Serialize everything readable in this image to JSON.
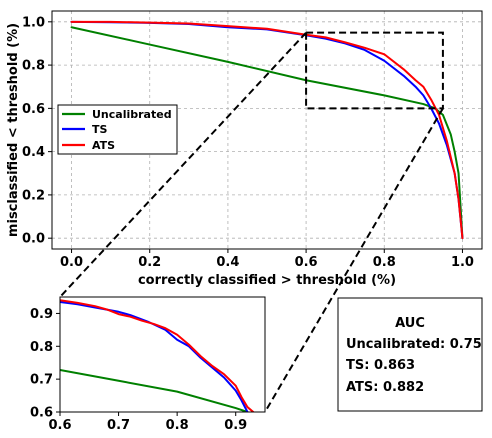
{
  "chart_data": [
    {
      "type": "line",
      "role": "main",
      "xlabel": "correctly classified > threshold (%)",
      "ylabel": "misclassified < threshold (%)",
      "xlim": [
        -0.05,
        1.05
      ],
      "ylim": [
        -0.05,
        1.05
      ],
      "xticks": [
        0.0,
        0.2,
        0.4,
        0.6,
        0.8,
        1.0
      ],
      "yticks": [
        0.0,
        0.2,
        0.4,
        0.6,
        0.8,
        1.0
      ],
      "xticklabels": [
        "0.0",
        "0.2",
        "0.4",
        "0.6",
        "0.8",
        "1.0"
      ],
      "yticklabels": [
        "0.0",
        "0.2",
        "0.4",
        "0.6",
        "0.8",
        "1.0"
      ],
      "grid": true,
      "legend_position": "center-left",
      "zoom_box": {
        "x": [
          0.6,
          0.95
        ],
        "y": [
          0.6,
          0.95
        ]
      },
      "series": [
        {
          "name": "Uncalibrated",
          "color": "#008000",
          "points": [
            [
              0.0,
              0.975
            ],
            [
              0.2,
              0.895
            ],
            [
              0.4,
              0.815
            ],
            [
              0.6,
              0.73
            ],
            [
              0.8,
              0.66
            ],
            [
              0.9,
              0.62
            ],
            [
              0.93,
              0.6
            ],
            [
              0.95,
              0.57
            ],
            [
              0.97,
              0.48
            ],
            [
              0.98,
              0.4
            ],
            [
              0.99,
              0.3
            ],
            [
              0.995,
              0.15
            ],
            [
              1.0,
              0.0
            ]
          ]
        },
        {
          "name": "TS",
          "color": "#0000ff",
          "points": [
            [
              0.0,
              1.0
            ],
            [
              0.1,
              0.998
            ],
            [
              0.2,
              0.995
            ],
            [
              0.3,
              0.99
            ],
            [
              0.4,
              0.975
            ],
            [
              0.5,
              0.965
            ],
            [
              0.6,
              0.938
            ],
            [
              0.65,
              0.922
            ],
            [
              0.7,
              0.9
            ],
            [
              0.75,
              0.87
            ],
            [
              0.8,
              0.82
            ],
            [
              0.85,
              0.75
            ],
            [
              0.88,
              0.7
            ],
            [
              0.9,
              0.66
            ],
            [
              0.92,
              0.6
            ],
            [
              0.94,
              0.53
            ],
            [
              0.96,
              0.43
            ],
            [
              0.98,
              0.3
            ],
            [
              0.99,
              0.18
            ],
            [
              1.0,
              0.0
            ]
          ]
        },
        {
          "name": "ATS",
          "color": "#ff0000",
          "points": [
            [
              0.0,
              1.0
            ],
            [
              0.1,
              1.0
            ],
            [
              0.2,
              0.996
            ],
            [
              0.3,
              0.992
            ],
            [
              0.4,
              0.98
            ],
            [
              0.5,
              0.968
            ],
            [
              0.6,
              0.94
            ],
            [
              0.65,
              0.928
            ],
            [
              0.7,
              0.905
            ],
            [
              0.75,
              0.88
            ],
            [
              0.8,
              0.85
            ],
            [
              0.85,
              0.78
            ],
            [
              0.88,
              0.73
            ],
            [
              0.9,
              0.7
            ],
            [
              0.92,
              0.64
            ],
            [
              0.94,
              0.57
            ],
            [
              0.96,
              0.45
            ],
            [
              0.98,
              0.3
            ],
            [
              0.99,
              0.18
            ],
            [
              1.0,
              0.0
            ]
          ]
        }
      ]
    },
    {
      "type": "line",
      "role": "zoom-inset",
      "xlim": [
        0.6,
        0.95
      ],
      "ylim": [
        0.6,
        0.95
      ],
      "xticks": [
        0.6,
        0.7,
        0.8,
        0.9
      ],
      "yticks": [
        0.6,
        0.7,
        0.8,
        0.9
      ],
      "xticklabels": [
        "0.6",
        "0.7",
        "0.8",
        "0.9"
      ],
      "yticklabels": [
        "0.6",
        "0.7",
        "0.8",
        "0.9"
      ],
      "grid": false,
      "series": [
        {
          "color": "#008000",
          "points": [
            [
              0.6,
              0.728
            ],
            [
              0.7,
              0.695
            ],
            [
              0.8,
              0.662
            ],
            [
              0.9,
              0.612
            ],
            [
              0.92,
              0.6
            ]
          ]
        },
        {
          "color": "#0000ff",
          "points": [
            [
              0.6,
              0.935
            ],
            [
              0.63,
              0.928
            ],
            [
              0.66,
              0.918
            ],
            [
              0.7,
              0.905
            ],
            [
              0.72,
              0.895
            ],
            [
              0.75,
              0.875
            ],
            [
              0.78,
              0.85
            ],
            [
              0.8,
              0.82
            ],
            [
              0.82,
              0.8
            ],
            [
              0.84,
              0.765
            ],
            [
              0.86,
              0.735
            ],
            [
              0.88,
              0.705
            ],
            [
              0.9,
              0.665
            ],
            [
              0.91,
              0.635
            ],
            [
              0.92,
              0.6
            ]
          ]
        },
        {
          "color": "#ff0000",
          "points": [
            [
              0.6,
              0.94
            ],
            [
              0.63,
              0.932
            ],
            [
              0.66,
              0.922
            ],
            [
              0.68,
              0.912
            ],
            [
              0.7,
              0.898
            ],
            [
              0.72,
              0.89
            ],
            [
              0.74,
              0.878
            ],
            [
              0.76,
              0.868
            ],
            [
              0.78,
              0.855
            ],
            [
              0.8,
              0.835
            ],
            [
              0.82,
              0.805
            ],
            [
              0.84,
              0.77
            ],
            [
              0.86,
              0.74
            ],
            [
              0.88,
              0.715
            ],
            [
              0.9,
              0.68
            ],
            [
              0.91,
              0.645
            ],
            [
              0.92,
              0.615
            ],
            [
              0.93,
              0.6
            ]
          ]
        }
      ]
    }
  ],
  "auc_box": {
    "title": "AUC",
    "lines": [
      "Uncalibrated: 0.75",
      "TS: 0.863",
      "ATS: 0.882"
    ]
  }
}
